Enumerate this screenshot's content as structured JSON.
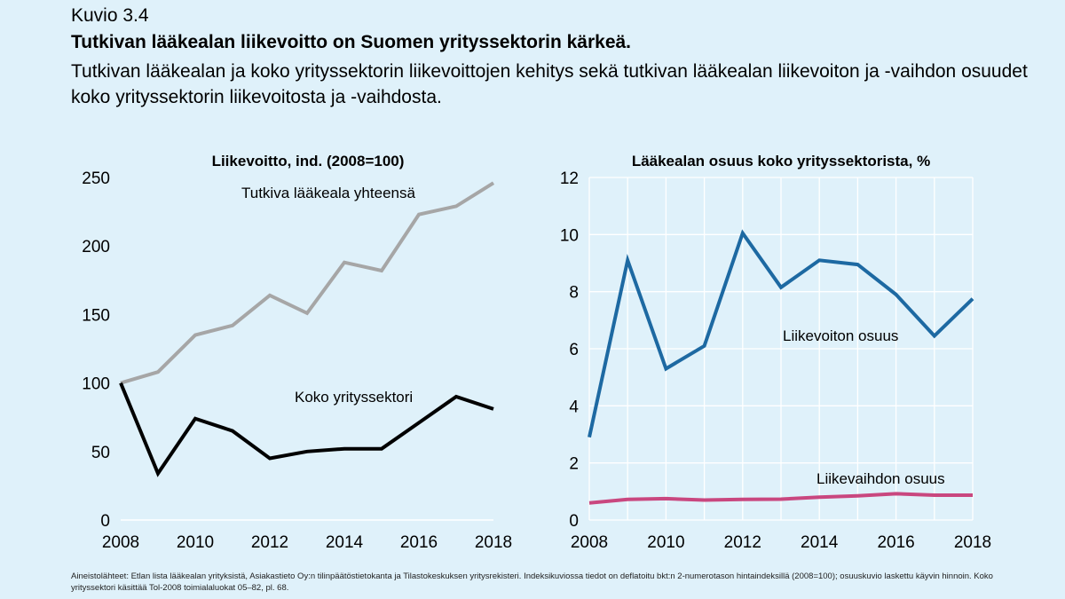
{
  "figure": {
    "number": "Kuvio 3.4",
    "title": "Tutkivan lääkealan liikevoitto on Suomen yrityssektorin kärkeä.",
    "subtitle": "Tutkivan lääkealan ja koko yrityssektorin liikevoittojen kehitys sekä tutkivan lääkealan liikevoiton ja -vaihdon osuudet koko yrityssektorin liikevoitosta ja -vaihdosta.",
    "source": "Aineistolähteet: Etlan lista lääkealan yrityksistä, Asiakastieto Oy:n tilinpäätöstietokanta ja Tilastokeskuksen yritysrekisteri. Indeksikuviossa tiedot on deflatoitu bkt:n 2-numerotason hintaindeksillä (2008=100); osuuskuvio laskettu käyvin hinnoin. Koko yrityssektori käsittää Tol-2008 toimialaluokat 05–82, pl. 68."
  },
  "chart_data": [
    {
      "type": "line",
      "title": "Liikevoitto, ind. (2008=100)",
      "x": [
        2008,
        2009,
        2010,
        2011,
        2012,
        2013,
        2014,
        2015,
        2016,
        2017,
        2018
      ],
      "xticks": [
        "2008",
        "2010",
        "2012",
        "2014",
        "2016",
        "2018"
      ],
      "yticks": [
        "0",
        "50",
        "100",
        "150",
        "200",
        "250"
      ],
      "ylim": [
        0,
        250
      ],
      "grid": false,
      "series": [
        {
          "name": "Tutkiva lääkeala yhteensä",
          "color": "#a6a6a6",
          "values": [
            100,
            108,
            135,
            142,
            164,
            151,
            188,
            182,
            223,
            229,
            246
          ]
        },
        {
          "name": "Koko yrityssektori",
          "color": "#000000",
          "values": [
            100,
            34,
            74,
            65,
            45,
            50,
            52,
            52,
            71,
            90,
            81
          ]
        }
      ]
    },
    {
      "type": "line",
      "title": "Lääkealan osuus koko yrityssektorista, %",
      "x": [
        2008,
        2009,
        2010,
        2011,
        2012,
        2013,
        2014,
        2015,
        2016,
        2017,
        2018
      ],
      "xticks": [
        "2008",
        "2010",
        "2012",
        "2014",
        "2016",
        "2018"
      ],
      "yticks": [
        "0",
        "2",
        "4",
        "6",
        "8",
        "10",
        "12"
      ],
      "ylim": [
        0,
        12
      ],
      "grid": true,
      "series": [
        {
          "name": "Liikevoiton osuus",
          "color": "#1d69a2",
          "values": [
            2.9,
            9.1,
            5.3,
            6.1,
            10.05,
            8.15,
            9.1,
            8.95,
            7.9,
            6.45,
            7.75
          ]
        },
        {
          "name": "Liikevaihdon osuus",
          "color": "#c9477f",
          "values": [
            0.6,
            0.72,
            0.75,
            0.7,
            0.72,
            0.73,
            0.8,
            0.85,
            0.92,
            0.87,
            0.87
          ]
        }
      ]
    }
  ]
}
